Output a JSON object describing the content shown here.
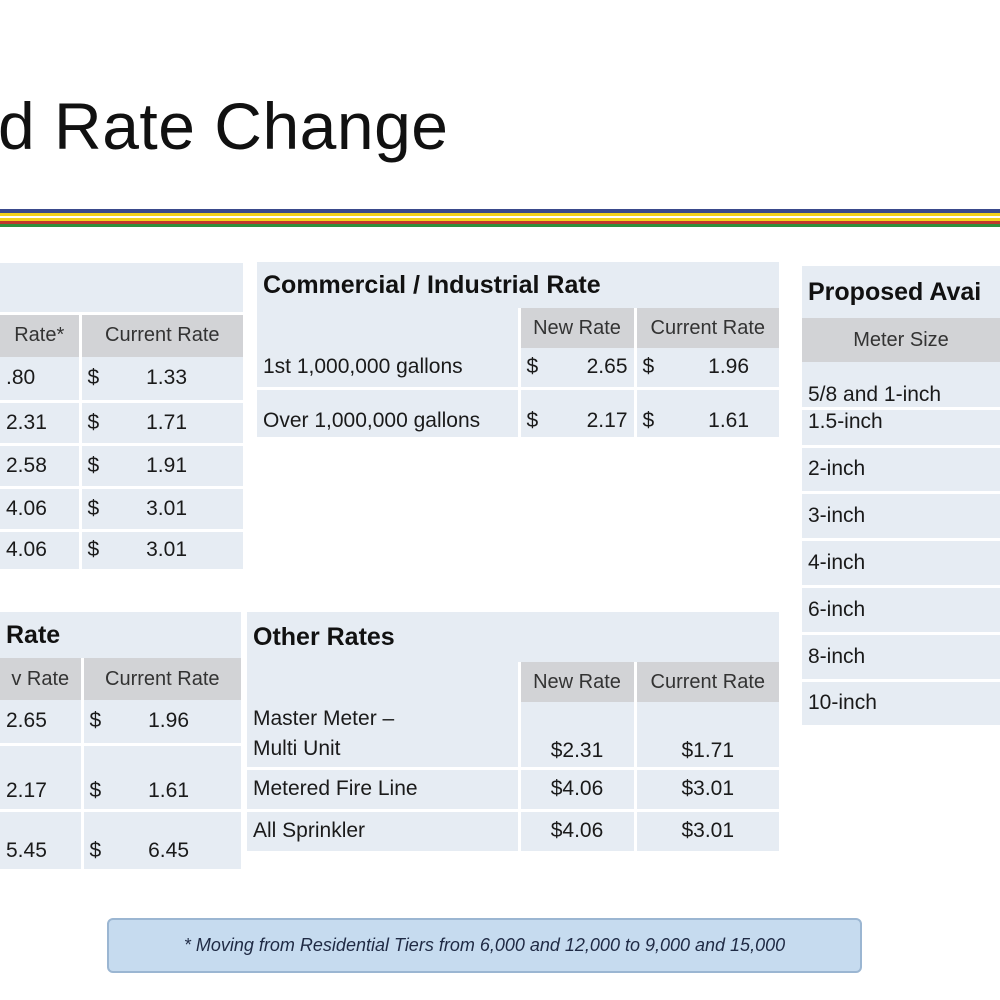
{
  "slide": {
    "title": "d Rate Change"
  },
  "stripes": {
    "colors": [
      "#3a4a8c",
      "#f2d21b",
      "#f2d21b",
      "#c0392b",
      "#2f8f3c"
    ]
  },
  "left_top_table": {
    "headers": [
      "Rate*",
      "Current Rate"
    ],
    "rows": [
      {
        "new": ".80",
        "cur_symbol": "$",
        "cur": "1.33"
      },
      {
        "new": "2.31",
        "cur_symbol": "$",
        "cur": "1.71"
      },
      {
        "new": "2.58",
        "cur_symbol": "$",
        "cur": "1.91"
      },
      {
        "new": "4.06",
        "cur_symbol": "$",
        "cur": "3.01"
      },
      {
        "new": "4.06",
        "cur_symbol": "$",
        "cur": "3.01"
      }
    ]
  },
  "left_bottom_table": {
    "title": "Rate",
    "headers": [
      "v Rate",
      "Current Rate"
    ],
    "rows": [
      {
        "new": "2.65",
        "cur_symbol": "$",
        "cur": "1.96"
      },
      {
        "new": "2.17",
        "cur_symbol": "$",
        "cur": "1.61"
      },
      {
        "new": "5.45",
        "cur_symbol": "$",
        "cur": "6.45"
      }
    ]
  },
  "commercial_table": {
    "title": "Commercial / Industrial Rate",
    "headers": [
      "New Rate",
      "Current Rate"
    ],
    "rows": [
      {
        "label": "1st 1,000,000 gallons",
        "new_symbol": "$",
        "new": "2.65",
        "cur_symbol": "$",
        "cur": "1.96"
      },
      {
        "label": "Over 1,000,000 gallons",
        "new_symbol": "$",
        "new": "2.17",
        "cur_symbol": "$",
        "cur": "1.61"
      }
    ]
  },
  "other_rates_table": {
    "title": "Other Rates",
    "headers": [
      "New Rate",
      "Current Rate"
    ],
    "rows": [
      {
        "label_line1": "Master Meter –",
        "label_line2": "Multi Unit",
        "new": "$2.31",
        "cur": "$1.71"
      },
      {
        "label": "Metered Fire Line",
        "new": "$4.06",
        "cur": "$3.01"
      },
      {
        "label": "All Sprinkler",
        "new": "$4.06",
        "cur": "$3.01"
      }
    ]
  },
  "availability_table": {
    "title": "Proposed Avai",
    "header": "Meter Size",
    "rows": [
      "5/8 and 1-inch",
      "1.5-inch",
      "2-inch",
      "3-inch",
      "4-inch",
      "6-inch",
      "8-inch",
      "10-inch"
    ]
  },
  "footnote": {
    "text": "* Moving from Residential Tiers from 6,000 and 12,000 to 9,000 and 15,000"
  }
}
